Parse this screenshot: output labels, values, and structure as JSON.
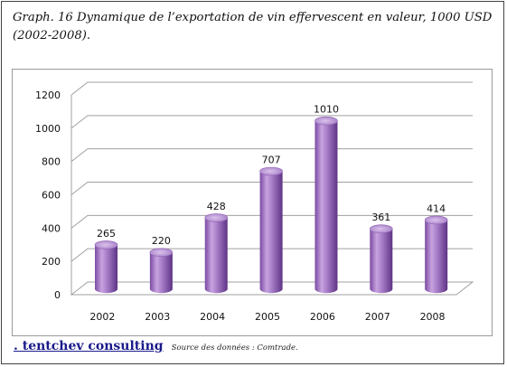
{
  "title": "Graph. 16 Dynamique de l’exportation de vin effervescent en valeur, 1000 USD (2002-2008).",
  "footer": {
    "brand": ". tentchev consulting",
    "source": "Source des données : Comtrade."
  },
  "chart_data": {
    "type": "bar",
    "style": "3d-cylinder",
    "categories": [
      "2002",
      "2003",
      "2004",
      "2005",
      "2006",
      "2007",
      "2008"
    ],
    "values": [
      265,
      220,
      428,
      707,
      1010,
      361,
      414
    ],
    "data_labels": [
      "265",
      "220",
      "428",
      "707",
      "1010",
      "361",
      "414"
    ],
    "ylim": [
      0,
      1200
    ],
    "yticks": [
      0,
      200,
      400,
      600,
      800,
      1000,
      1200
    ],
    "ytick_labels": [
      "0",
      "200",
      "400",
      "600",
      "800",
      "1000",
      "1200"
    ],
    "grid": true,
    "legend": "none",
    "colors": {
      "bar_light": "#c9a6df",
      "bar_mid": "#9b6fbe",
      "bar_dark": "#6e3f96",
      "grid": "#a0a0a0",
      "wall": "#ffffff"
    }
  }
}
